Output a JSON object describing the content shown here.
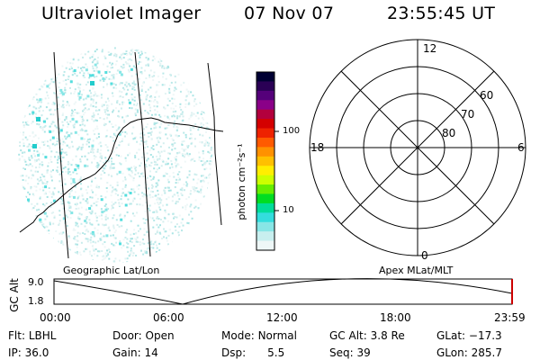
{
  "header": {
    "title": "Ultraviolet Imager",
    "date": "07 Nov 07",
    "time": "23:55:45 UT"
  },
  "panels": {
    "left_label": "Geographic Lat/Lon",
    "right_label": "Apex MLat/MLT"
  },
  "colorbar": {
    "unit_label": "photon cm⁻²s⁻¹",
    "ticks": [
      "100",
      "10"
    ],
    "colors": [
      "#000033",
      "#2a0055",
      "#55007a",
      "#8a0088",
      "#b3003d",
      "#d40000",
      "#ee2200",
      "#ff5a00",
      "#ff9100",
      "#ffc000",
      "#ffee00",
      "#ccff00",
      "#66ee00",
      "#00dd22",
      "#00dd99",
      "#33dddd",
      "#88e6e6",
      "#c8efef",
      "#eef7f7"
    ]
  },
  "polar": {
    "mlt_labels": {
      "top": "12",
      "left": "18",
      "right": "6",
      "bottom": "0"
    },
    "lat_labels": [
      "60",
      "70",
      "80"
    ]
  },
  "timeline": {
    "ylabel": "GC Alt",
    "yticks": [
      "9.0",
      "1.8"
    ],
    "xticks": [
      "00:00",
      "06:00",
      "12:00",
      "18:00",
      "23:59"
    ]
  },
  "info": {
    "flt": {
      "label": "Flt:",
      "value": "LBHL"
    },
    "ip": {
      "label": "IP:",
      "value": "36.0"
    },
    "door": {
      "label": "Door:",
      "value": "Open"
    },
    "gain": {
      "label": "Gain:",
      "value": "14"
    },
    "mode": {
      "label": "Mode:",
      "value": "Normal"
    },
    "dsp": {
      "label": "Dsp:",
      "value": "5.5"
    },
    "gcalt": {
      "label": "GC Alt:",
      "value": "3.8 Re"
    },
    "seq": {
      "label": "Seq:",
      "value": "39"
    },
    "glat": {
      "label": "GLat:",
      "value": "−17.3"
    },
    "glon": {
      "label": "GLon:",
      "value": "285.7"
    }
  }
}
